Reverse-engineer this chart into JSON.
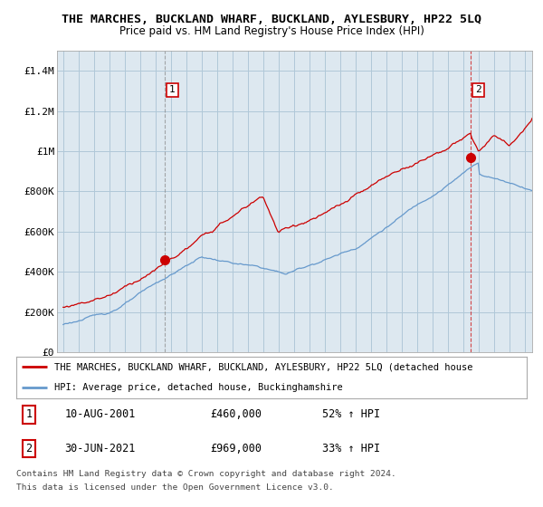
{
  "title": "THE MARCHES, BUCKLAND WHARF, BUCKLAND, AYLESBURY, HP22 5LQ",
  "subtitle": "Price paid vs. HM Land Registry's House Price Index (HPI)",
  "background_color": "#ffffff",
  "plot_bg_color": "#dde8f0",
  "grid_color": "#b0c8d8",
  "red_color": "#cc0000",
  "blue_color": "#6699cc",
  "marker1_year": 2001.6,
  "marker1_value": 460000,
  "marker2_year": 2021.5,
  "marker2_value": 969000,
  "ylim": [
    0,
    1500000
  ],
  "xlim": [
    1994.6,
    2025.5
  ],
  "ytick_values": [
    0,
    200000,
    400000,
    600000,
    800000,
    1000000,
    1200000,
    1400000
  ],
  "ytick_labels": [
    "£0",
    "£200K",
    "£400K",
    "£600K",
    "£800K",
    "£1M",
    "£1.2M",
    "£1.4M"
  ],
  "legend_red_label": "THE MARCHES, BUCKLAND WHARF, BUCKLAND, AYLESBURY, HP22 5LQ (detached house",
  "legend_blue_label": "HPI: Average price, detached house, Buckinghamshire",
  "table_row1": [
    "1",
    "10-AUG-2001",
    "£460,000",
    "52% ↑ HPI"
  ],
  "table_row2": [
    "2",
    "30-JUN-2021",
    "£969,000",
    "33% ↑ HPI"
  ],
  "footer1": "Contains HM Land Registry data © Crown copyright and database right 2024.",
  "footer2": "This data is licensed under the Open Government Licence v3.0.",
  "dashed_line1_x": 2001.6,
  "dashed_line2_x": 2021.5,
  "dashed1_color": "#888888",
  "dashed2_color": "#cc0000"
}
